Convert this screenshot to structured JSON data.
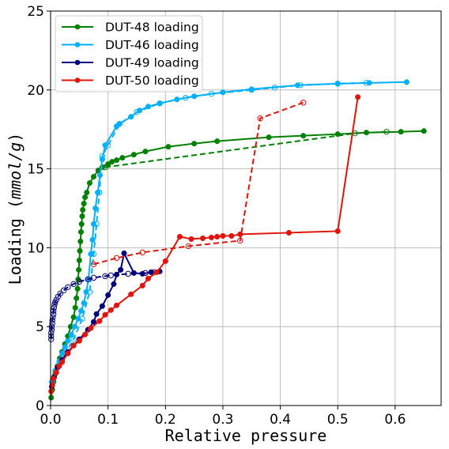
{
  "chart_data": {
    "type": "line",
    "title": "",
    "xlabel": "Relative pressure",
    "ylabel_prefix": "Loading (",
    "ylabel_unit": "mmol/g",
    "ylabel_suffix": ")",
    "xlim": [
      0,
      0.68
    ],
    "ylim": [
      0,
      25
    ],
    "xticks": [
      0.0,
      0.1,
      0.2,
      0.3,
      0.4,
      0.5,
      0.6
    ],
    "xtick_labels": [
      "0.0",
      "0.1",
      "0.2",
      "0.3",
      "0.4",
      "0.5",
      "0.6"
    ],
    "yticks": [
      0,
      5,
      10,
      15,
      20,
      25
    ],
    "ytick_labels": [
      "0",
      "5",
      "10",
      "15",
      "20",
      "25"
    ],
    "grid": true,
    "legend_position": "top-left",
    "series": [
      {
        "name": "DUT-48 loading",
        "color": "#008000",
        "adsorption": [
          [
            0.001,
            0.5
          ],
          [
            0.003,
            1.0
          ],
          [
            0.005,
            1.5
          ],
          [
            0.008,
            2.0
          ],
          [
            0.012,
            2.5
          ],
          [
            0.016,
            3.0
          ],
          [
            0.02,
            3.4
          ],
          [
            0.025,
            3.9
          ],
          [
            0.03,
            4.4
          ],
          [
            0.035,
            5.0
          ],
          [
            0.04,
            5.6
          ],
          [
            0.043,
            6.2
          ],
          [
            0.045,
            6.8
          ],
          [
            0.047,
            7.4
          ],
          [
            0.048,
            8.0
          ],
          [
            0.049,
            8.6
          ],
          [
            0.05,
            9.2
          ],
          [
            0.051,
            9.8
          ],
          [
            0.052,
            10.4
          ],
          [
            0.053,
            11.0
          ],
          [
            0.054,
            11.5
          ],
          [
            0.055,
            12.0
          ],
          [
            0.056,
            12.4
          ],
          [
            0.058,
            12.8
          ],
          [
            0.06,
            13.2
          ],
          [
            0.063,
            13.5
          ],
          [
            0.068,
            14.1
          ],
          [
            0.075,
            14.5
          ],
          [
            0.083,
            14.9
          ],
          [
            0.09,
            15.1
          ],
          [
            0.1,
            15.3
          ],
          [
            0.107,
            15.45
          ],
          [
            0.115,
            15.55
          ],
          [
            0.125,
            15.7
          ],
          [
            0.145,
            15.9
          ],
          [
            0.165,
            16.1
          ],
          [
            0.205,
            16.4
          ],
          [
            0.25,
            16.6
          ],
          [
            0.29,
            16.75
          ],
          [
            0.38,
            17.0
          ],
          [
            0.44,
            17.1
          ],
          [
            0.5,
            17.2
          ],
          [
            0.55,
            17.3
          ],
          [
            0.61,
            17.35
          ],
          [
            0.65,
            17.4
          ]
        ],
        "desorption": [
          [
            0.095,
            15.1
          ],
          [
            0.53,
            17.25
          ],
          [
            0.585,
            17.35
          ]
        ]
      },
      {
        "name": "DUT-46 loading",
        "color": "#00b0ff",
        "adsorption": [
          [
            0.002,
            1.5
          ],
          [
            0.008,
            2.2
          ],
          [
            0.015,
            2.8
          ],
          [
            0.02,
            3.3
          ],
          [
            0.025,
            3.7
          ],
          [
            0.03,
            4.1
          ],
          [
            0.036,
            4.5
          ],
          [
            0.042,
            5.0
          ],
          [
            0.048,
            5.5
          ],
          [
            0.053,
            6.0
          ],
          [
            0.058,
            6.5
          ],
          [
            0.062,
            7.2
          ],
          [
            0.066,
            8.0
          ],
          [
            0.07,
            9.6
          ],
          [
            0.073,
            10.5
          ],
          [
            0.075,
            11.5
          ],
          [
            0.078,
            12.5
          ],
          [
            0.082,
            13.5
          ],
          [
            0.086,
            14.6
          ],
          [
            0.09,
            15.6
          ],
          [
            0.095,
            16.5
          ],
          [
            0.115,
            17.7
          ],
          [
            0.12,
            17.85
          ],
          [
            0.14,
            18.3
          ],
          [
            0.155,
            18.7
          ],
          [
            0.17,
            18.95
          ],
          [
            0.19,
            19.15
          ],
          [
            0.22,
            19.4
          ],
          [
            0.25,
            19.6
          ],
          [
            0.3,
            19.85
          ],
          [
            0.35,
            20.05
          ],
          [
            0.43,
            20.3
          ],
          [
            0.5,
            20.4
          ],
          [
            0.555,
            20.45
          ],
          [
            0.62,
            20.5
          ]
        ],
        "desorption": [
          [
            0.005,
            1.7
          ],
          [
            0.015,
            2.6
          ],
          [
            0.025,
            3.3
          ],
          [
            0.04,
            4.2
          ],
          [
            0.055,
            5.5
          ],
          [
            0.068,
            7.2
          ],
          [
            0.075,
            9.6
          ],
          [
            0.08,
            11.5
          ],
          [
            0.085,
            13.5
          ],
          [
            0.09,
            15.8
          ],
          [
            0.1,
            16.5
          ],
          [
            0.12,
            17.85
          ],
          [
            0.15,
            18.6
          ],
          [
            0.19,
            19.15
          ],
          [
            0.235,
            19.5
          ],
          [
            0.28,
            19.75
          ],
          [
            0.35,
            20.0
          ],
          [
            0.39,
            20.15
          ],
          [
            0.435,
            20.3
          ],
          [
            0.5,
            20.4
          ],
          [
            0.55,
            20.45
          ]
        ]
      },
      {
        "name": "DUT-49 loading",
        "color": "#00007a",
        "adsorption": [
          [
            0.002,
            1.2
          ],
          [
            0.006,
            1.8
          ],
          [
            0.012,
            2.4
          ],
          [
            0.02,
            2.9
          ],
          [
            0.03,
            3.4
          ],
          [
            0.04,
            3.8
          ],
          [
            0.05,
            4.2
          ],
          [
            0.065,
            4.8
          ],
          [
            0.075,
            5.3
          ],
          [
            0.08,
            5.8
          ],
          [
            0.09,
            6.3
          ],
          [
            0.1,
            7.0
          ],
          [
            0.11,
            7.7
          ],
          [
            0.115,
            8.3
          ],
          [
            0.122,
            8.6
          ],
          [
            0.128,
            9.65
          ],
          [
            0.145,
            8.4
          ],
          [
            0.16,
            8.35
          ],
          [
            0.175,
            8.45
          ],
          [
            0.19,
            8.5
          ]
        ],
        "desorption": [
          [
            0.001,
            4.2
          ],
          [
            0.001,
            4.4
          ],
          [
            0.001,
            4.6
          ],
          [
            0.002,
            4.8
          ],
          [
            0.002,
            5.0
          ],
          [
            0.003,
            5.2
          ],
          [
            0.003,
            5.4
          ],
          [
            0.004,
            5.6
          ],
          [
            0.005,
            5.8
          ],
          [
            0.005,
            6.0
          ],
          [
            0.006,
            6.2
          ],
          [
            0.007,
            6.4
          ],
          [
            0.008,
            6.55
          ],
          [
            0.01,
            6.7
          ],
          [
            0.013,
            6.9
          ],
          [
            0.017,
            7.1
          ],
          [
            0.023,
            7.3
          ],
          [
            0.03,
            7.5
          ],
          [
            0.04,
            7.7
          ],
          [
            0.05,
            7.85
          ],
          [
            0.065,
            8.0
          ],
          [
            0.075,
            8.1
          ],
          [
            0.095,
            8.2
          ],
          [
            0.105,
            8.25
          ],
          [
            0.135,
            8.35
          ],
          [
            0.165,
            8.4
          ],
          [
            0.18,
            8.45
          ]
        ]
      },
      {
        "name": "DUT-50 loading",
        "color": "#e0140a",
        "adsorption": [
          [
            0.001,
            0.9
          ],
          [
            0.003,
            1.3
          ],
          [
            0.005,
            1.7
          ],
          [
            0.01,
            2.1
          ],
          [
            0.015,
            2.5
          ],
          [
            0.02,
            2.75
          ],
          [
            0.03,
            3.3
          ],
          [
            0.04,
            3.8
          ],
          [
            0.05,
            4.1
          ],
          [
            0.06,
            4.5
          ],
          [
            0.07,
            4.9
          ],
          [
            0.085,
            5.35
          ],
          [
            0.095,
            5.75
          ],
          [
            0.105,
            6.05
          ],
          [
            0.115,
            6.35
          ],
          [
            0.14,
            7.05
          ],
          [
            0.16,
            7.6
          ],
          [
            0.17,
            8.05
          ],
          [
            0.185,
            8.45
          ],
          [
            0.2,
            9.15
          ],
          [
            0.225,
            10.7
          ],
          [
            0.245,
            10.55
          ],
          [
            0.265,
            10.6
          ],
          [
            0.28,
            10.65
          ],
          [
            0.29,
            10.7
          ],
          [
            0.3,
            10.75
          ],
          [
            0.315,
            10.75
          ],
          [
            0.33,
            10.85
          ],
          [
            0.415,
            10.95
          ],
          [
            0.5,
            11.05
          ],
          [
            0.535,
            19.55
          ]
        ],
        "desorption": [
          [
            0.075,
            8.95
          ],
          [
            0.115,
            9.35
          ],
          [
            0.16,
            9.7
          ],
          [
            0.24,
            10.1
          ],
          [
            0.33,
            10.45
          ],
          [
            0.365,
            18.2
          ],
          [
            0.44,
            19.2
          ]
        ]
      }
    ]
  }
}
